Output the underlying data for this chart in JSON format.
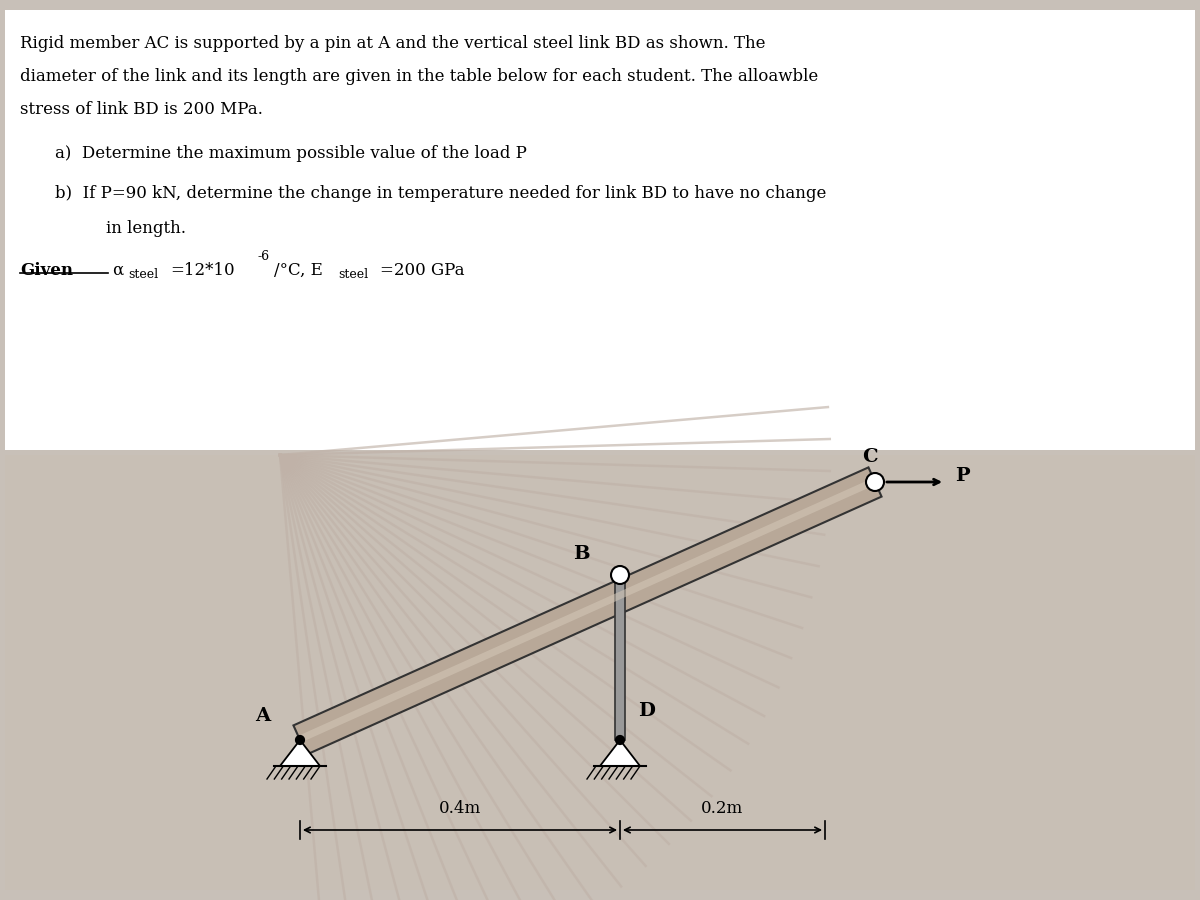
{
  "line1": "Rigid member AC is supported by a pin at A and the vertical steel link BD as shown. The",
  "line2": "diameter of the link and its length are given in the table below for each student. The alloawble",
  "line3": "stress of link BD is 200 MPa.",
  "part_a": "a)  Determine the maximum possible value of the load P",
  "part_b1": "b)  If P=90 kN, determine the change in temperature needed for link BD to have no change",
  "part_b2": "    in length.",
  "given_label": "Given",
  "alpha_sym": "α",
  "steel_sub": "steel",
  "given_mid": "=12*10",
  "sup_text": "-6",
  "given_end": "/°C, E",
  "given_final": "=200 GPa",
  "label_A": "A",
  "label_B": "B",
  "label_C": "C",
  "label_D": "D",
  "label_P": "P",
  "dim_04": "0.4m",
  "dim_02": "0.2m",
  "text_color": "#000000",
  "white_bg": "#ffffff",
  "diag_bg": "#c8bfb5",
  "beam_face": "#b8a898",
  "beam_stripe": "#d4c8b8",
  "beam_edge": "#333333",
  "link_face": "#999999",
  "link_edge": "#333333",
  "fan_line_color": "#c0b2a8",
  "fig_bg": "#c8c0b8"
}
